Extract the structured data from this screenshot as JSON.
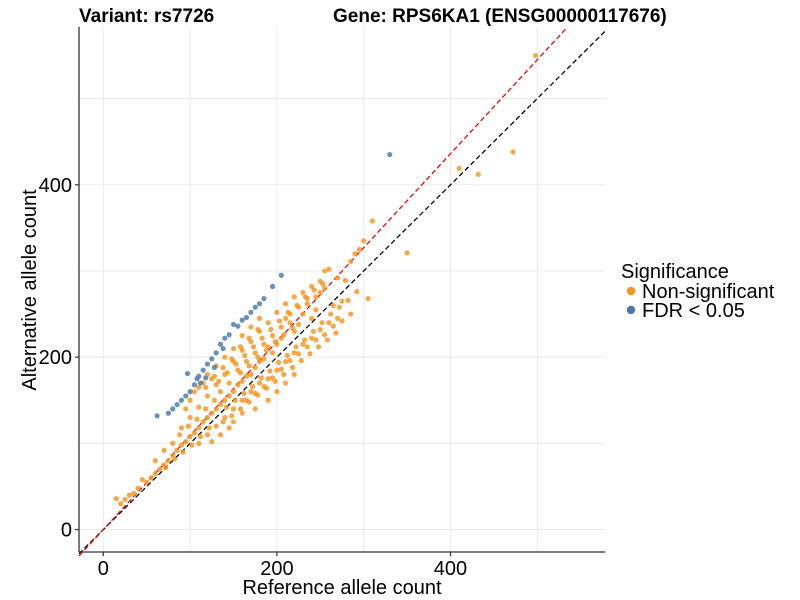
{
  "chart_data": {
    "type": "scatter",
    "title_left": "Variant: rs7726",
    "title_right": "Gene: RPS6KA1 (ENSG00000117676)",
    "xlabel": "Reference allele count",
    "ylabel": "Alternative allele count",
    "xlim": [
      -28,
      578
    ],
    "ylim": [
      -26,
      583
    ],
    "x_ticks": [
      0,
      200,
      400
    ],
    "y_ticks": [
      0,
      200,
      400
    ],
    "grid": true,
    "legend": {
      "title": "Significance",
      "placement": "right",
      "entries": [
        {
          "label": "Non-significant",
          "color": "#f7941d"
        },
        {
          "label": "FDR < 0.05",
          "color": "#4a78ac"
        }
      ]
    },
    "reference_lines": [
      {
        "name": "identity",
        "slope": 1.0,
        "intercept": 0,
        "color": "#000000",
        "style": "dashed"
      },
      {
        "name": "fit",
        "slope": 1.09,
        "intercept": 0,
        "color": "#ff0000",
        "style": "dashed"
      }
    ],
    "series": [
      {
        "name": "Non-significant",
        "color": "#f7941d",
        "points": [
          [
            498,
            550
          ],
          [
            472,
            438
          ],
          [
            432,
            412
          ],
          [
            410,
            419
          ],
          [
            350,
            321
          ],
          [
            310,
            358
          ],
          [
            305,
            268
          ],
          [
            285,
            311
          ],
          [
            279,
            289
          ],
          [
            270,
            292
          ],
          [
            260,
            302
          ],
          [
            300,
            335
          ],
          [
            295,
            325
          ],
          [
            290,
            320
          ],
          [
            275,
            265
          ],
          [
            265,
            260
          ],
          [
            255,
            300
          ],
          [
            250,
            275
          ],
          [
            245,
            255
          ],
          [
            240,
            245
          ],
          [
            235,
            262
          ],
          [
            230,
            250
          ],
          [
            225,
            238
          ],
          [
            220,
            230
          ],
          [
            215,
            240
          ],
          [
            210,
            245
          ],
          [
            205,
            222
          ],
          [
            200,
            215
          ],
          [
            195,
            205
          ],
          [
            190,
            212
          ],
          [
            185,
            198
          ],
          [
            180,
            195
          ],
          [
            175,
            188
          ],
          [
            170,
            180
          ],
          [
            165,
            178
          ],
          [
            160,
            172
          ],
          [
            155,
            168
          ],
          [
            150,
            160
          ],
          [
            145,
            155
          ],
          [
            140,
            150
          ],
          [
            135,
            145
          ],
          [
            130,
            140
          ],
          [
            125,
            135
          ],
          [
            120,
            130
          ],
          [
            115,
            125
          ],
          [
            110,
            118
          ],
          [
            105,
            112
          ],
          [
            100,
            108
          ],
          [
            95,
            102
          ],
          [
            90,
            98
          ],
          [
            85,
            92
          ],
          [
            80,
            86
          ],
          [
            75,
            80
          ],
          [
            70,
            75
          ],
          [
            65,
            70
          ],
          [
            60,
            65
          ],
          [
            55,
            60
          ],
          [
            50,
            55
          ],
          [
            45,
            58
          ],
          [
            40,
            48
          ],
          [
            35,
            42
          ],
          [
            30,
            40
          ],
          [
            25,
            35
          ],
          [
            20,
            30
          ],
          [
            15,
            36
          ],
          [
            60,
            80
          ],
          [
            70,
            92
          ],
          [
            80,
            100
          ],
          [
            90,
            118
          ],
          [
            100,
            130
          ],
          [
            110,
            142
          ],
          [
            120,
            155
          ],
          [
            130,
            168
          ],
          [
            140,
            180
          ],
          [
            150,
            195
          ],
          [
            160,
            208
          ],
          [
            170,
            218
          ],
          [
            180,
            230
          ],
          [
            190,
            240
          ],
          [
            200,
            252
          ],
          [
            210,
            262
          ],
          [
            220,
            270
          ],
          [
            230,
            275
          ],
          [
            240,
            282
          ],
          [
            250,
            288
          ],
          [
            180,
            170
          ],
          [
            200,
            185
          ],
          [
            210,
            195
          ],
          [
            220,
            205
          ],
          [
            230,
            215
          ],
          [
            240,
            222
          ],
          [
            250,
            232
          ],
          [
            260,
            240
          ],
          [
            270,
            245
          ],
          [
            190,
            175
          ],
          [
            170,
            160
          ],
          [
            160,
            150
          ],
          [
            150,
            140
          ],
          [
            140,
            130
          ],
          [
            130,
            120
          ],
          [
            120,
            110
          ],
          [
            110,
            100
          ],
          [
            210,
            170
          ],
          [
            220,
            180
          ],
          [
            200,
            160
          ],
          [
            190,
            150
          ],
          [
            175,
            140
          ],
          [
            160,
            135
          ],
          [
            150,
            125
          ],
          [
            145,
            118
          ],
          [
            135,
            110
          ],
          [
            125,
            102
          ],
          [
            140,
            200
          ],
          [
            150,
            210
          ],
          [
            160,
            225
          ],
          [
            170,
            235
          ],
          [
            180,
            245
          ],
          [
            130,
            190
          ],
          [
            120,
            180
          ],
          [
            115,
            170
          ],
          [
            105,
            160
          ],
          [
            100,
            150
          ],
          [
            95,
            140
          ],
          [
            110,
            165
          ],
          [
            125,
            175
          ],
          [
            155,
            185
          ],
          [
            165,
            195
          ],
          [
            175,
            205
          ],
          [
            185,
            215
          ],
          [
            195,
            225
          ],
          [
            205,
            235
          ],
          [
            215,
            250
          ],
          [
            225,
            258
          ],
          [
            235,
            268
          ],
          [
            245,
            270
          ],
          [
            255,
            280
          ],
          [
            145,
            170
          ],
          [
            135,
            160
          ],
          [
            128,
            150
          ],
          [
            118,
            140
          ],
          [
            108,
            128
          ],
          [
            98,
            120
          ],
          [
            88,
            110
          ],
          [
            158,
            182
          ],
          [
            168,
            190
          ],
          [
            178,
            200
          ],
          [
            188,
            208
          ],
          [
            198,
            218
          ],
          [
            208,
            226
          ],
          [
            218,
            234
          ],
          [
            142,
            142
          ],
          [
            152,
            150
          ],
          [
            162,
            158
          ],
          [
            172,
            166
          ],
          [
            182,
            176
          ],
          [
            192,
            184
          ],
          [
            202,
            194
          ],
          [
            212,
            202
          ],
          [
            222,
            212
          ],
          [
            232,
            220
          ],
          [
            242,
            230
          ],
          [
            252,
            240
          ],
          [
            262,
            250
          ],
          [
            272,
            258
          ],
          [
            282,
            266
          ],
          [
            292,
            276
          ],
          [
            138,
            125
          ],
          [
            148,
            132
          ],
          [
            158,
            140
          ],
          [
            168,
            148
          ],
          [
            178,
            156
          ],
          [
            188,
            164
          ],
          [
            198,
            172
          ],
          [
            208,
            180
          ],
          [
            218,
            188
          ],
          [
            228,
            196
          ],
          [
            238,
            204
          ],
          [
            248,
            212
          ],
          [
            258,
            220
          ],
          [
            268,
            228
          ],
          [
            122,
            118
          ],
          [
            112,
            108
          ],
          [
            102,
            98
          ],
          [
            92,
            90
          ],
          [
            82,
            82
          ],
          [
            72,
            72
          ],
          [
            133,
            172
          ],
          [
            143,
            182
          ],
          [
            153,
            192
          ],
          [
            163,
            202
          ],
          [
            173,
            212
          ],
          [
            183,
            222
          ],
          [
            193,
            232
          ],
          [
            203,
            242
          ],
          [
            213,
            252
          ],
          [
            223,
            260
          ],
          [
            233,
            270
          ],
          [
            243,
            278
          ],
          [
            253,
            285
          ],
          [
            118,
            165
          ],
          [
            128,
            178
          ],
          [
            138,
            188
          ],
          [
            148,
            198
          ],
          [
            158,
            212
          ],
          [
            168,
            222
          ],
          [
            178,
            232
          ],
          [
            165,
            150
          ],
          [
            175,
            158
          ],
          [
            185,
            166
          ],
          [
            195,
            176
          ],
          [
            205,
            186
          ],
          [
            215,
            196
          ],
          [
            225,
            204
          ],
          [
            235,
            212
          ],
          [
            245,
            220
          ],
          [
            255,
            226
          ],
          [
            265,
            236
          ],
          [
            275,
            242
          ],
          [
            285,
            250
          ]
        ]
      },
      {
        "name": "FDR < 0.05",
        "color": "#4a78ac",
        "points": [
          [
            330,
            435
          ],
          [
            205,
            295
          ],
          [
            195,
            282
          ],
          [
            180,
            262
          ],
          [
            175,
            258
          ],
          [
            170,
            252
          ],
          [
            160,
            243
          ],
          [
            150,
            238
          ],
          [
            140,
            222
          ],
          [
            135,
            215
          ],
          [
            130,
            205
          ],
          [
            125,
            198
          ],
          [
            120,
            192
          ],
          [
            115,
            185
          ],
          [
            110,
            178
          ],
          [
            108,
            175
          ],
          [
            105,
            168
          ],
          [
            100,
            160
          ],
          [
            95,
            155
          ],
          [
            90,
            150
          ],
          [
            85,
            145
          ],
          [
            80,
            140
          ],
          [
            75,
            135
          ],
          [
            62,
            132
          ],
          [
            97,
            181
          ],
          [
            112,
            170
          ],
          [
            118,
            176
          ],
          [
            128,
            188
          ],
          [
            138,
            210
          ],
          [
            145,
            226
          ],
          [
            155,
            236
          ],
          [
            165,
            246
          ],
          [
            185,
            268
          ]
        ]
      }
    ]
  }
}
